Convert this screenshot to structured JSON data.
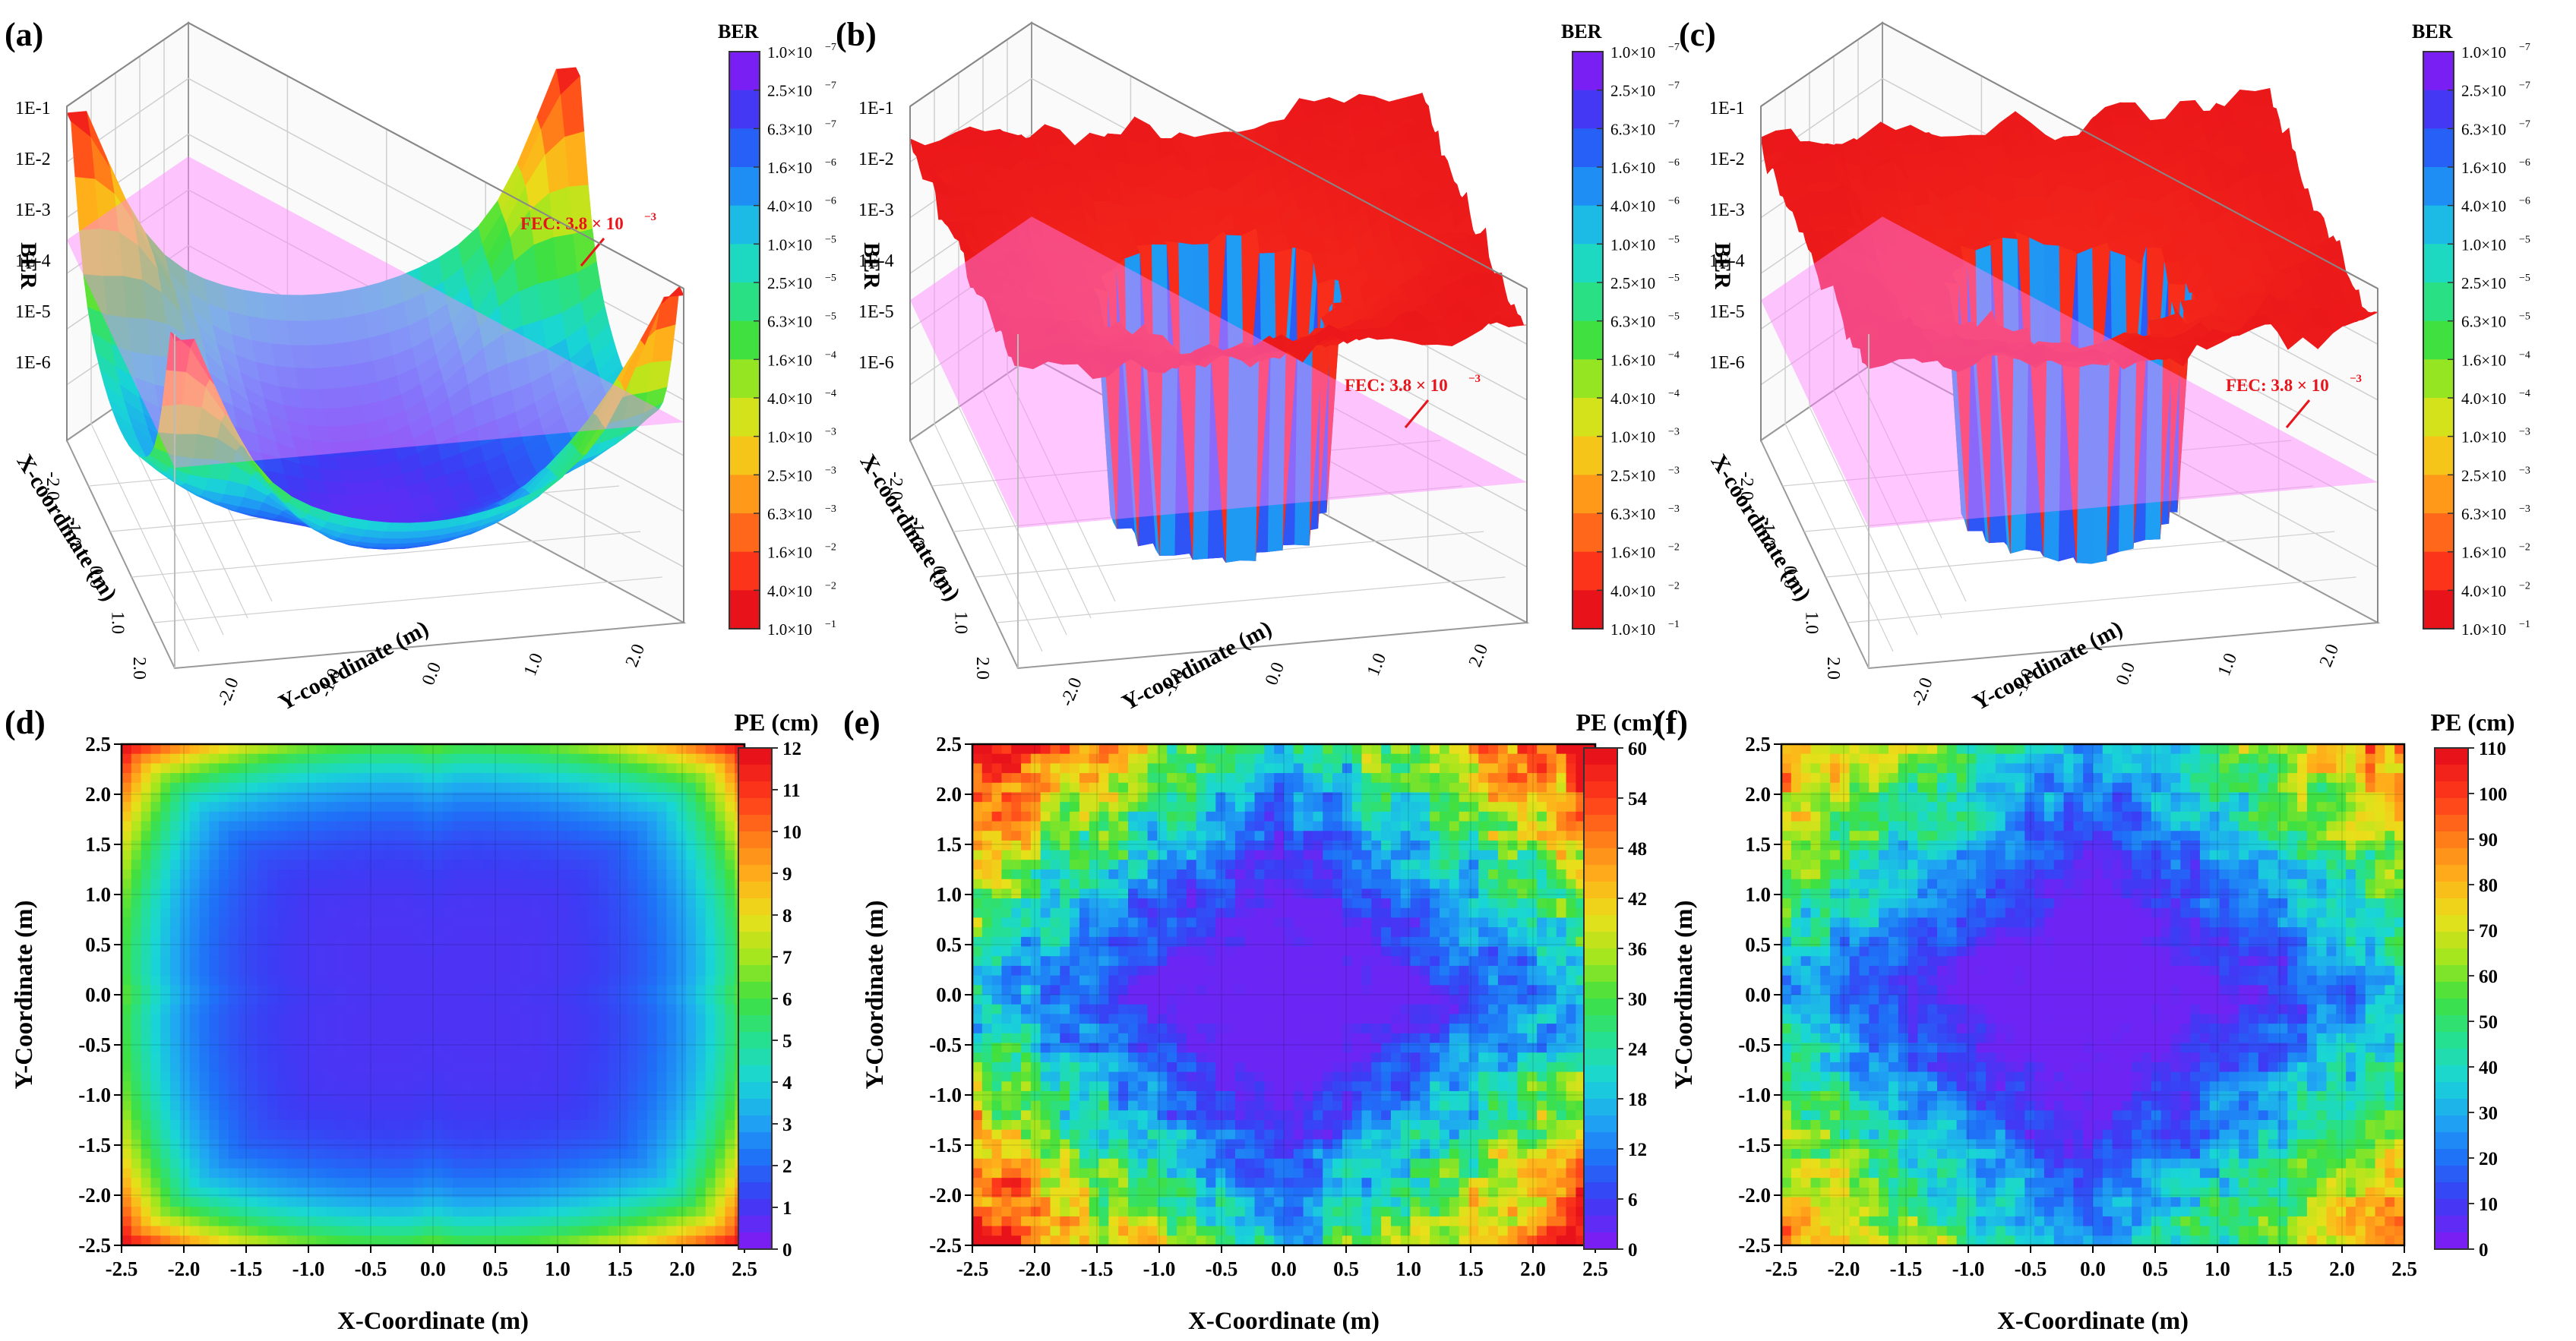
{
  "figure": {
    "colors": {
      "plane": "#ff80ff",
      "fec_text": "#e8141c",
      "jet": [
        "#7a1ff4",
        "#3c3cf5",
        "#1f6ff7",
        "#1fa6f2",
        "#19d6d6",
        "#26e08f",
        "#40e040",
        "#a3e61e",
        "#e8e01a",
        "#ffb01a",
        "#ff7a1a",
        "#ff3a1a",
        "#e8121a"
      ]
    }
  },
  "chart_data": [
    {
      "panel": "(a)",
      "type": "surface3d",
      "zlabel": "BER",
      "z_ticks": [
        "1E-1",
        "1E-2",
        "1E-3",
        "1E-4",
        "1E-5",
        "1E-6"
      ],
      "xlabel": "X-coordinate (m)",
      "ylabel": "Y-coordinate (m)",
      "x_ticks": [
        "-2.0",
        "-1.0",
        "0.0",
        "1.0",
        "2.0"
      ],
      "y_ticks": [
        "-2.0",
        "-1.0",
        "0.0",
        "1.0",
        "2.0"
      ],
      "fec_label": "FEC: 3.8 × 10",
      "fec_exp": "−3",
      "fec_threshold": 0.0038,
      "colorbar_title": "BER",
      "colorbar_labels": [
        "1.0×10",
        "2.5×10",
        "6.3×10",
        "1.6×10",
        "4.0×10",
        "1.0×10",
        "2.5×10",
        "6.3×10",
        "1.6×10",
        "4.0×10",
        "1.0×10",
        "2.5×10",
        "6.3×10",
        "1.6×10",
        "4.0×10",
        "1.0×10"
      ],
      "colorbar_exps": [
        "−7",
        "−7",
        "−7",
        "−6",
        "−6",
        "−5",
        "−5",
        "−5",
        "−4",
        "−4",
        "−3",
        "−3",
        "−3",
        "−2",
        "−2",
        "−1"
      ]
    },
    {
      "panel": "(b)",
      "type": "surface3d",
      "zlabel": "BER",
      "z_ticks": [
        "1E-1",
        "1E-2",
        "1E-3",
        "1E-4",
        "1E-5",
        "1E-6"
      ],
      "xlabel": "X-coordinate (m)",
      "ylabel": "Y-coordinate (m)",
      "x_ticks": [
        "-2.0",
        "-1.0",
        "0.0",
        "1.0",
        "2.0"
      ],
      "y_ticks": [
        "-2.0",
        "-1.0",
        "0.0",
        "1.0",
        "2.0"
      ],
      "fec_label": "FEC: 3.8 × 10",
      "fec_exp": "−3",
      "fec_threshold": 0.0038,
      "colorbar_title": "BER",
      "colorbar_labels": [
        "1.0×10",
        "2.5×10",
        "6.3×10",
        "1.6×10",
        "4.0×10",
        "1.0×10",
        "2.5×10",
        "6.3×10",
        "1.6×10",
        "4.0×10",
        "1.0×10",
        "2.5×10",
        "6.3×10",
        "1.6×10",
        "4.0×10",
        "1.0×10"
      ],
      "colorbar_exps": [
        "−7",
        "−7",
        "−7",
        "−6",
        "−6",
        "−5",
        "−5",
        "−5",
        "−4",
        "−4",
        "−3",
        "−3",
        "−3",
        "−2",
        "−2",
        "−1"
      ]
    },
    {
      "panel": "(c)",
      "type": "surface3d",
      "zlabel": "BER",
      "z_ticks": [
        "1E-1",
        "1E-2",
        "1E-3",
        "1E-4",
        "1E-5",
        "1E-6"
      ],
      "xlabel": "X-coordinate (m)",
      "ylabel": "Y-coordinate (m)",
      "x_ticks": [
        "-2.0",
        "-1.0",
        "0.0",
        "1.0",
        "2.0"
      ],
      "y_ticks": [
        "-2.0",
        "-1.0",
        "0.0",
        "1.0",
        "2.0"
      ],
      "fec_label": "FEC: 3.8 × 10",
      "fec_exp": "−3",
      "fec_threshold": 0.0038,
      "colorbar_title": "BER",
      "colorbar_labels": [
        "1.0×10",
        "2.5×10",
        "6.3×10",
        "1.6×10",
        "4.0×10",
        "1.0×10",
        "2.5×10",
        "6.3×10",
        "1.6×10",
        "4.0×10",
        "1.0×10",
        "2.5×10",
        "6.3×10",
        "1.6×10",
        "4.0×10",
        "1.0×10"
      ],
      "colorbar_exps": [
        "−7",
        "−7",
        "−7",
        "−6",
        "−6",
        "−5",
        "−5",
        "−5",
        "−4",
        "−4",
        "−3",
        "−3",
        "−3",
        "−2",
        "−2",
        "−1"
      ]
    },
    {
      "panel": "(d)",
      "type": "heatmap",
      "xlabel": "X-Coordinate (m)",
      "ylabel": "Y-Coordinate (m)",
      "x_ticks": [
        "-2.5",
        "-2.0",
        "-1.5",
        "-1.0",
        "-0.5",
        "0.0",
        "0.5",
        "1.0",
        "1.5",
        "2.0",
        "2.5"
      ],
      "y_ticks": [
        "2.5",
        "2.0",
        "1.5",
        "1.0",
        "0.5",
        "0.0",
        "-0.5",
        "-1.0",
        "-1.5",
        "-2.0",
        "-2.5"
      ],
      "xlim": [
        -2.5,
        2.5
      ],
      "ylim": [
        -2.5,
        2.5
      ],
      "colorbar_title": "PE (cm)",
      "colorbar_ticks": [
        "12",
        "11",
        "10",
        "9",
        "8",
        "7",
        "6",
        "5",
        "4",
        "3",
        "2",
        "1",
        "0"
      ],
      "zlim": [
        0,
        12
      ],
      "pattern": "clover"
    },
    {
      "panel": "(e)",
      "type": "heatmap",
      "xlabel": "X-Coordinate (m)",
      "ylabel": "Y-Coordinate (m)",
      "x_ticks": [
        "-2.5",
        "-2.0",
        "-1.5",
        "-1.0",
        "-0.5",
        "0.0",
        "0.5",
        "1.0",
        "1.5",
        "2.0",
        "2.5"
      ],
      "y_ticks": [
        "2.5",
        "2.0",
        "1.5",
        "1.0",
        "0.5",
        "0.0",
        "-0.5",
        "-1.0",
        "-1.5",
        "-2.0",
        "-2.5"
      ],
      "xlim": [
        -2.5,
        2.5
      ],
      "ylim": [
        -2.5,
        2.5
      ],
      "colorbar_title": "PE (cm)",
      "colorbar_ticks": [
        "60",
        "54",
        "48",
        "42",
        "36",
        "30",
        "24",
        "18",
        "12",
        "6",
        "0"
      ],
      "zlim": [
        0,
        60
      ],
      "pattern": "diamond"
    },
    {
      "panel": "(f)",
      "type": "heatmap",
      "xlabel": "X-Coordinate (m)",
      "ylabel": "Y-Coordinate (m)",
      "x_ticks": [
        "-2.5",
        "-2.0",
        "-1.5",
        "-1.0",
        "-0.5",
        "0.0",
        "0.5",
        "1.0",
        "1.5",
        "2.0",
        "2.5"
      ],
      "y_ticks": [
        "2.5",
        "2.0",
        "1.5",
        "1.0",
        "0.5",
        "0.0",
        "-0.5",
        "-1.0",
        "-1.5",
        "-2.0",
        "-2.5"
      ],
      "xlim": [
        -2.5,
        2.5
      ],
      "ylim": [
        -2.5,
        2.5
      ],
      "colorbar_title": "PE (cm)",
      "colorbar_ticks": [
        "110",
        "100",
        "90",
        "80",
        "70",
        "60",
        "50",
        "40",
        "30",
        "20",
        "10",
        "0"
      ],
      "zlim": [
        0,
        110
      ],
      "pattern": "diamond"
    }
  ]
}
